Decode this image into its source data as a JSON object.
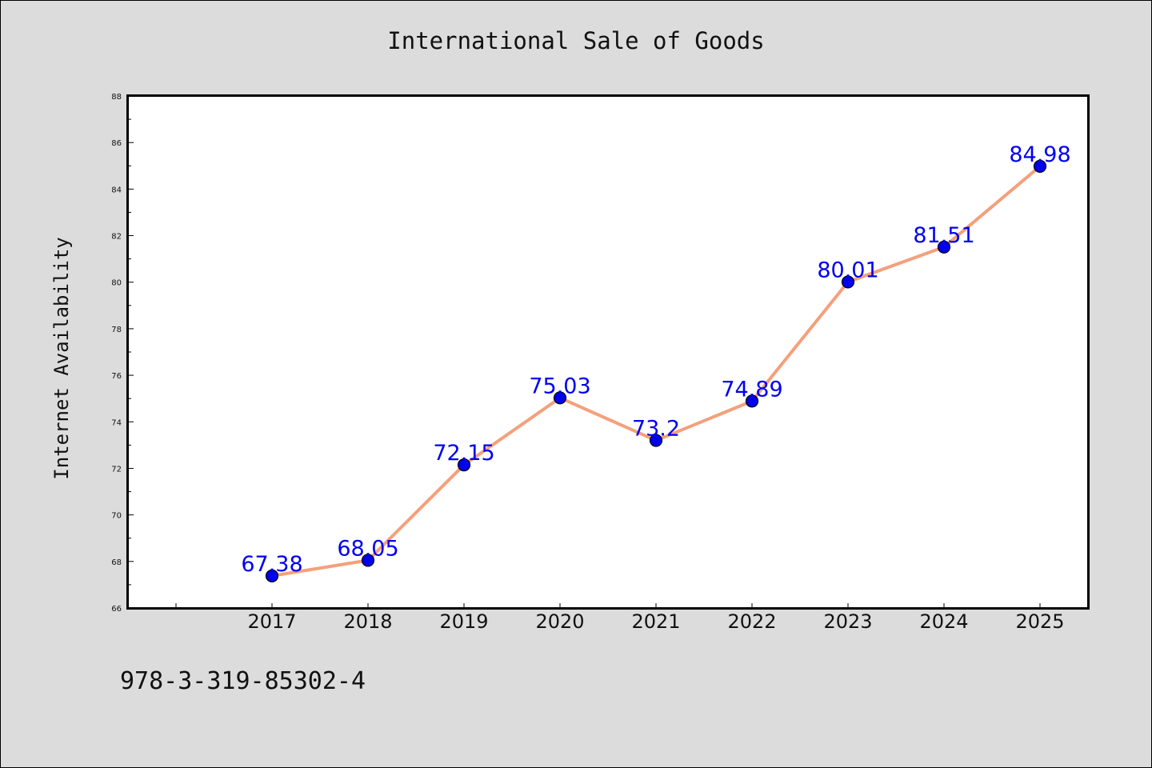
{
  "chart_data": {
    "type": "line",
    "title": "International Sale of Goods",
    "xlabel": "",
    "ylabel": "Internet Availability",
    "x": [
      "2017",
      "2018",
      "2019",
      "2020",
      "2021",
      "2022",
      "2023",
      "2024",
      "2025"
    ],
    "series": [
      {
        "values": [
          67.38,
          68.05,
          72.15,
          75.03,
          73.2,
          74.89,
          80.01,
          81.51,
          84.98
        ],
        "data_labels": [
          "67.38",
          "68.05",
          "72.15",
          "75.03",
          "73.2",
          "74.89",
          "80.01",
          "81.51",
          "84.98"
        ],
        "line_color": "#f4a07c",
        "marker_color": "#0000ee"
      }
    ],
    "ylim": [
      66,
      88
    ],
    "yticks": [
      "66",
      "68",
      "70",
      "72",
      "74",
      "76",
      "78",
      "80",
      "82",
      "84",
      "86",
      "88"
    ],
    "grid": false,
    "legend": "none"
  },
  "footer": {
    "code": "978-3-319-85302-4"
  }
}
